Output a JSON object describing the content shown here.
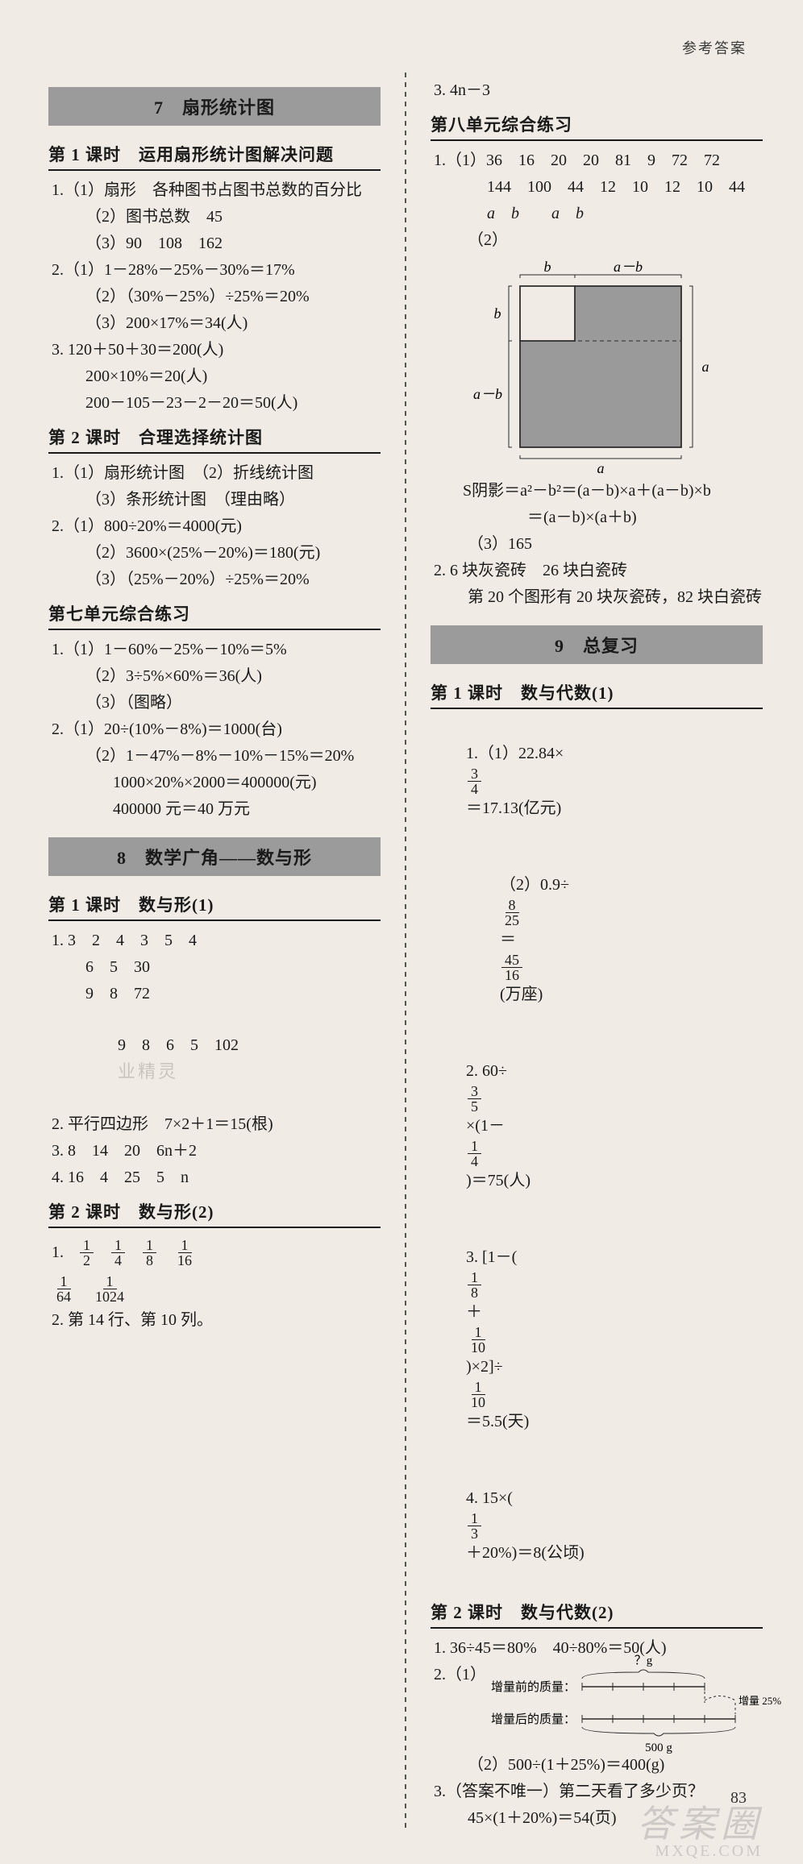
{
  "header_right": "参考答案",
  "page_number": "83",
  "watermark_main": "答案圈",
  "watermark_sub": "MXQE.COM",
  "col_left": {
    "banner7": "7　扇形统计图",
    "k7_1_title": "第 1 课时　运用扇形统计图解决问题",
    "k7_1_lines": [
      "1.（1）扇形　各种图书占图书总数的百分比",
      "（2）图书总数　45",
      "（3）90　108　162",
      "2.（1）1－28%－25%－30%＝17%",
      "（2）（30%－25%）÷25%＝20%",
      "（3）200×17%＝34(人)",
      "3. 120＋50＋30＝200(人)",
      "200×10%＝20(人)",
      "200－105－23－2－20＝50(人)"
    ],
    "k7_2_title": "第 2 课时　合理选择统计图",
    "k7_2_lines": [
      "1.（1）扇形统计图　（2）折线统计图",
      "（3）条形统计图　（理由略）",
      "2.（1）800÷20%＝4000(元)",
      "（2）3600×(25%－20%)＝180(元)",
      "（3）（25%－20%）÷25%＝20%"
    ],
    "k7_rev_title": "第七单元综合练习",
    "k7_rev_lines": [
      "1.（1）1－60%－25%－10%＝5%",
      "（2）3÷5%×60%＝36(人)",
      "（3）（图略）",
      "2.（1）20÷(10%－8%)＝1000(台)",
      "（2）1－47%－8%－10%－15%＝20%",
      "1000×20%×2000＝400000(元)",
      "400000 元＝40 万元"
    ],
    "banner8": "8　数学广角——数与形",
    "k8_1_title": "第 1 课时　数与形(1)",
    "k8_1_lines": [
      "1. 3　2　4　3　5　4",
      "6　5　30",
      "9　8　72",
      "9　8　6　5　102",
      "2. 平行四边形　7×2＋1＝15(根)",
      "3. 8　14　20　6n＋2",
      "4. 16　4　25　5　n"
    ],
    "ghost_text": "业精灵",
    "k8_2_title": "第 2 课时　数与形(2)",
    "k8_2_q1_prefix": "1.",
    "k8_2_fracs_row1": [
      {
        "n": "1",
        "d": "2"
      },
      {
        "n": "1",
        "d": "4"
      },
      {
        "n": "1",
        "d": "8"
      },
      {
        "n": "1",
        "d": "16"
      }
    ],
    "k8_2_fracs_row2": [
      {
        "n": "1",
        "d": "64"
      },
      {
        "n": "1",
        "d": "1024"
      }
    ],
    "k8_2_line2": "2. 第 14 行、第 10 列。"
  },
  "col_right": {
    "top_line": "3. 4n－3",
    "u8_rev_title": "第八单元综合练习",
    "u8_rev_lines_a": [
      "1.（1）36　16　20　20　81　9　72　72",
      "144　100　44　12　10　12　10　44",
      "a　b　　a　b"
    ],
    "u8_rev_prefix2": "（2）",
    "diagram": {
      "outer": 200,
      "inner": 68,
      "stroke": "#2a2a2a",
      "fill_shade": "#9a9a9a",
      "lbl_a": "a",
      "lbl_b": "b",
      "lbl_amb": "a－b",
      "bracket_w": 10
    },
    "u8_formula_lines": [
      "S阴影＝a²－b²＝(a－b)×a＋(a－b)×b",
      "　　＝(a－b)×(a＋b)",
      "（3）165"
    ],
    "u8_q2_lines": [
      "2. 6 块灰瓷砖　26 块白瓷砖",
      "第 20 个图形有 20 块灰瓷砖，82 块白瓷砖"
    ],
    "banner9": "9　总复习",
    "k9_1_title": "第 1 课时　数与代数(1)",
    "k9_1_item1_pre": "1.（1）22.84×",
    "k9_1_item1_frac": {
      "n": "3",
      "d": "4"
    },
    "k9_1_item1_post": "＝17.13(亿元)",
    "k9_1_item2_pre": "（2）0.9÷",
    "k9_1_item2_f1": {
      "n": "8",
      "d": "25"
    },
    "k9_1_item2_mid": "＝",
    "k9_1_item2_f2": {
      "n": "45",
      "d": "16"
    },
    "k9_1_item2_post": "(万座)",
    "k9_1_item3_pre": "2. 60÷",
    "k9_1_item3_f1": {
      "n": "3",
      "d": "5"
    },
    "k9_1_item3_mid": "×(1－",
    "k9_1_item3_f2": {
      "n": "1",
      "d": "4"
    },
    "k9_1_item3_post": ")＝75(人)",
    "k9_1_item4_pre": "3. [1－(",
    "k9_1_item4_f1": {
      "n": "1",
      "d": "8"
    },
    "k9_1_item4_mid1": "＋",
    "k9_1_item4_f2": {
      "n": "1",
      "d": "10"
    },
    "k9_1_item4_mid2": ")×2]÷",
    "k9_1_item4_f3": {
      "n": "1",
      "d": "10"
    },
    "k9_1_item4_post": "＝5.5(天)",
    "k9_1_item5_pre": "4. 15×(",
    "k9_1_item5_f1": {
      "n": "1",
      "d": "3"
    },
    "k9_1_item5_post": "＋20%)＝8(公顷)",
    "k9_2_title": "第 2 课时　数与代数(2)",
    "k9_2_line1": "1. 36÷45＝80%　40÷80%＝50(人)",
    "k9_2_q2_prefix": "2.（1）",
    "nl": {
      "lbl_before": "增量前的质量：",
      "lbl_after": "增量后的质量：",
      "qmark": "？g",
      "inc": "增量 25%",
      "val": "500 g"
    },
    "k9_2_line2": "（2）500÷(1＋25%)＝400(g)",
    "k9_2_line3": "3.（答案不唯一）第二天看了多少页？",
    "k9_2_line4": "45×(1＋20%)＝54(页)"
  }
}
